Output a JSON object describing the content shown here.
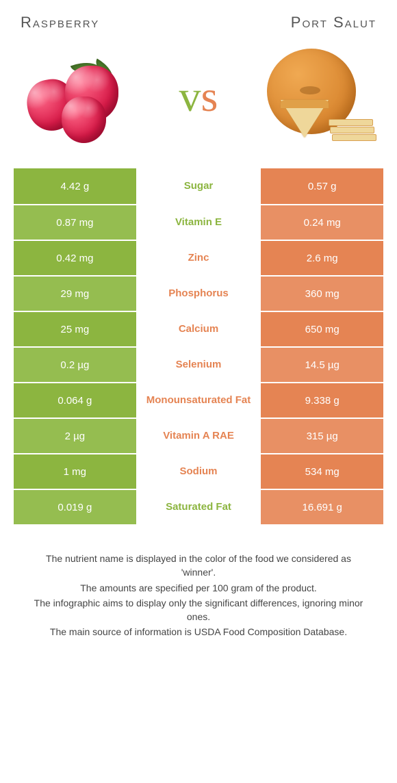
{
  "comparison": {
    "left_title": "Raspberry",
    "right_title": "Port Salut",
    "vs_label": "vs"
  },
  "colors": {
    "left_primary": "#8cb540",
    "left_alt": "#95bd50",
    "right_primary": "#e58453",
    "right_alt": "#e89064",
    "label_left": "#8cb540",
    "label_right": "#e58453"
  },
  "rows": [
    {
      "label": "Sugar",
      "left": "4.42 g",
      "right": "0.57 g",
      "winner": "left"
    },
    {
      "label": "Vitamin E",
      "left": "0.87 mg",
      "right": "0.24 mg",
      "winner": "left"
    },
    {
      "label": "Zinc",
      "left": "0.42 mg",
      "right": "2.6 mg",
      "winner": "right"
    },
    {
      "label": "Phosphorus",
      "left": "29 mg",
      "right": "360 mg",
      "winner": "right"
    },
    {
      "label": "Calcium",
      "left": "25 mg",
      "right": "650 mg",
      "winner": "right"
    },
    {
      "label": "Selenium",
      "left": "0.2 µg",
      "right": "14.5 µg",
      "winner": "right"
    },
    {
      "label": "Monounsaturated Fat",
      "left": "0.064 g",
      "right": "9.338 g",
      "winner": "right"
    },
    {
      "label": "Vitamin A RAE",
      "left": "2 µg",
      "right": "315 µg",
      "winner": "right"
    },
    {
      "label": "Sodium",
      "left": "1 mg",
      "right": "534 mg",
      "winner": "right"
    },
    {
      "label": "Saturated Fat",
      "left": "0.019 g",
      "right": "16.691 g",
      "winner": "left"
    }
  ],
  "footer": {
    "l1": "The nutrient name is displayed in the color of the food we considered as 'winner'.",
    "l2": "The amounts are specified per 100 gram of the product.",
    "l3": "The infographic aims to display only the significant differences, ignoring minor ones.",
    "l4": "The main source of information is USDA Food Composition Database."
  }
}
